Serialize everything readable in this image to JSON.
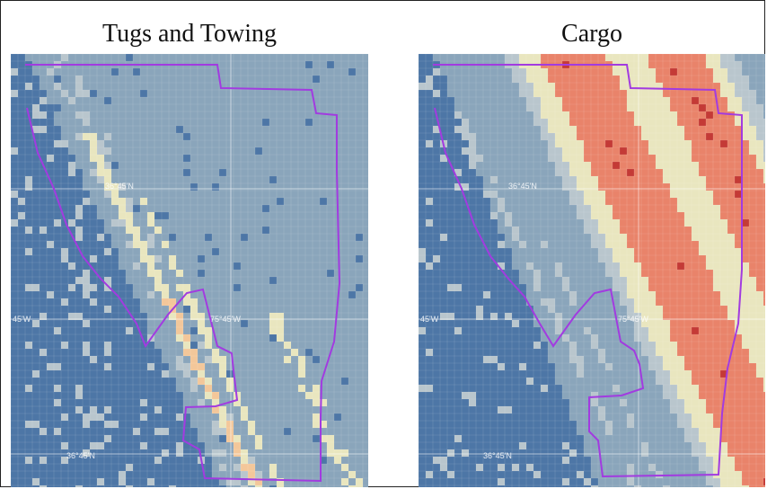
{
  "panels": [
    {
      "id": "left",
      "title": "Tugs and Towing",
      "coord_labels": [
        "36°45'N",
        "75°45'W",
        "45'W",
        "36°45'N"
      ]
    },
    {
      "id": "right",
      "title": "Cargo",
      "coord_labels": [
        "36°45'N",
        "75°45'W",
        "45'W",
        "36°45'N"
      ]
    }
  ],
  "colors": {
    "frame": "#222222",
    "background_ocean": "#4d76a6",
    "low": "#8aa5bb",
    "light": "#b9c6cd",
    "mid": "#e9e6bf",
    "warm": "#f3c79a",
    "high": "#e9836a",
    "peak": "#c43a36",
    "boundary": "#a23be0",
    "gridline": "#ffffff"
  }
}
